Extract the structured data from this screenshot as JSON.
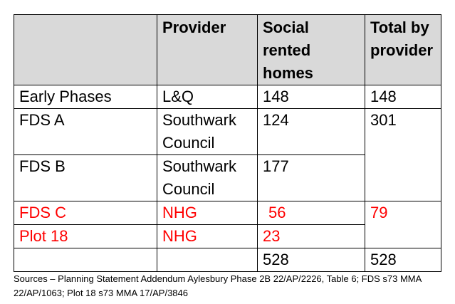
{
  "table": {
    "headers": [
      "",
      "Provider",
      "Social rented homes",
      "Total by provider"
    ],
    "rows": [
      {
        "phase": "Early Phases",
        "provider": "L&Q",
        "homes": "148",
        "total": "148"
      },
      {
        "phase": "FDS A",
        "provider": "Southwark Council",
        "homes": "124",
        "total": "301"
      },
      {
        "phase": "FDS B",
        "provider": "Southwark Council",
        "homes": "177"
      },
      {
        "phase": "FDS C",
        "provider": "NHG",
        "homes": "56",
        "total": "79"
      },
      {
        "phase": "Plot 18",
        "provider": "NHG",
        "homes": "23"
      },
      {
        "phase": "",
        "provider": "",
        "homes": "528",
        "total": "528"
      }
    ]
  },
  "highlight_color": "#ff0000",
  "header_background": "#d9d9d9",
  "sources": "Sources – Planning Statement Addendum Aylesbury Phase 2B 22/AP/2226, Table 6; FDS s73 MMA 22/AP/1063; Plot 18 s73 MMA 17/AP/3846"
}
